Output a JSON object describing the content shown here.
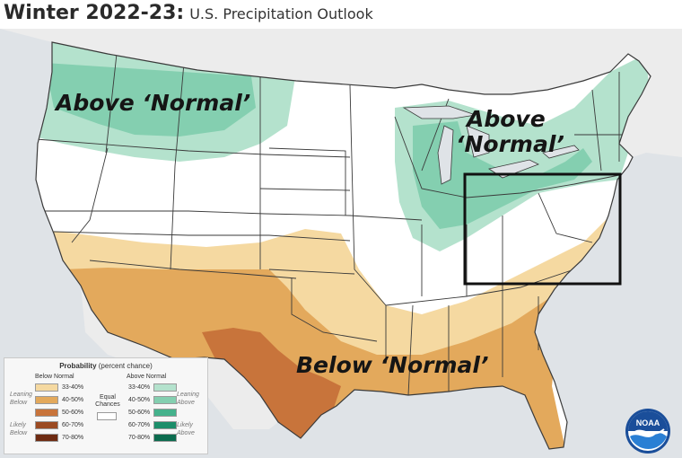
{
  "header": {
    "title_main": "Winter 2022-23:",
    "title_sub": "U.S. Precipitation Outlook"
  },
  "map": {
    "labels": {
      "above_west": "Above ‘Normal’",
      "above_east_line1": "Above",
      "above_east_line2": "‘Normal’",
      "below_south": "Below ‘Normal’"
    },
    "highlight_region": "Mid-Atlantic / Ohio Valley box"
  },
  "legend": {
    "title_bold": "Probability",
    "title_rest": "(percent chance)",
    "below_header": "Below Normal",
    "above_header": "Above Normal",
    "equal_line1": "Equal",
    "equal_line2": "Chances",
    "leaning_below_1": "Leaning",
    "leaning_below_2": "Below",
    "likely_below_1": "Likely",
    "likely_below_2": "Below",
    "leaning_above_1": "Leaning",
    "leaning_above_2": "Above",
    "likely_above_1": "Likely",
    "likely_above_2": "Above",
    "below": [
      {
        "label": "33-40%",
        "color": "#f5d9a1"
      },
      {
        "label": "40-50%",
        "color": "#e3a95c"
      },
      {
        "label": "50-60%",
        "color": "#c8743b"
      },
      {
        "label": "60-70%",
        "color": "#9b4a22"
      },
      {
        "label": "70-80%",
        "color": "#6e2b12"
      }
    ],
    "above": [
      {
        "label": "33-40%",
        "color": "#b4e2cd"
      },
      {
        "label": "40-50%",
        "color": "#84cfb0"
      },
      {
        "label": "50-60%",
        "color": "#45b28c"
      },
      {
        "label": "60-70%",
        "color": "#1c8e6a"
      },
      {
        "label": "70-80%",
        "color": "#0b6b4e"
      }
    ],
    "equal_color": "#ffffff"
  },
  "logo": {
    "text": "NOAA"
  }
}
